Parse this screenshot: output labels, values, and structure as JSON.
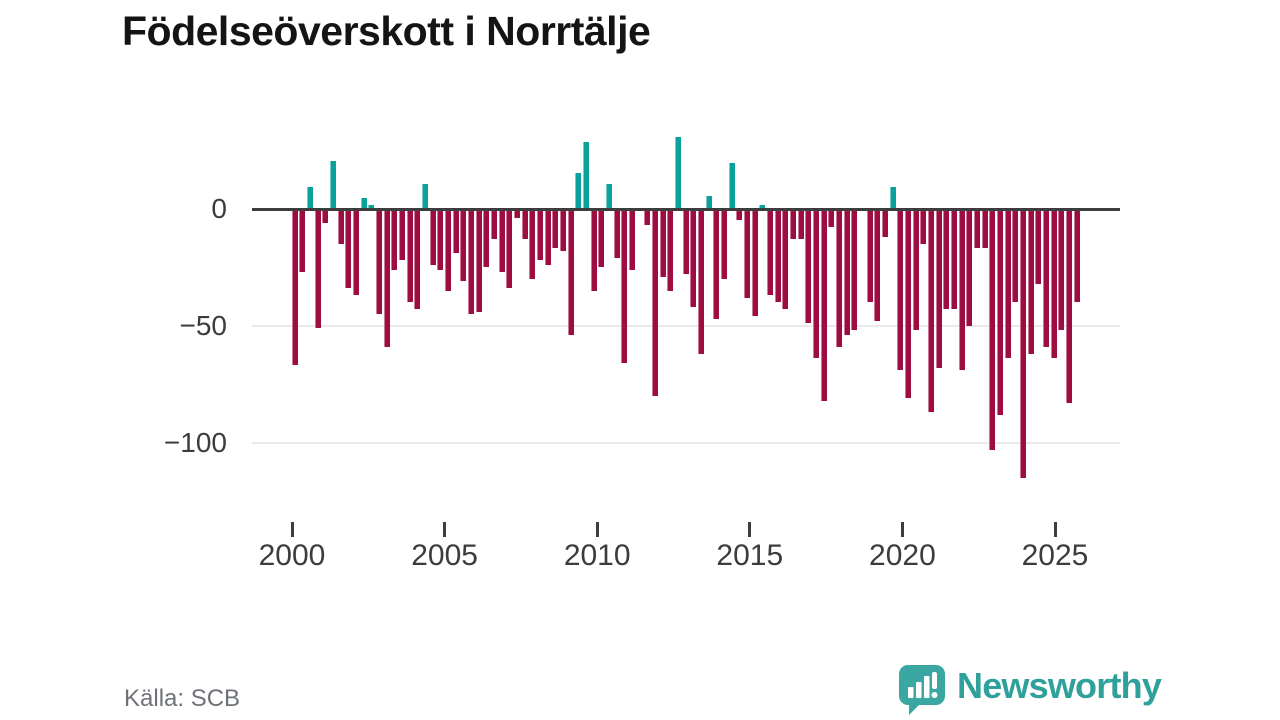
{
  "title": "Födelseöverskott i Norrtälje",
  "source": "Källa: SCB",
  "branding": {
    "name": "Newsworthy"
  },
  "chart_data": {
    "type": "bar",
    "title": "Födelseöverskott i Norrtälje",
    "frequency": "quarterly",
    "start_period": "2000 Q1",
    "end_period": "2025 Q3",
    "x_tick_labels": [
      "2000",
      "2005",
      "2010",
      "2015",
      "2020",
      "2025"
    ],
    "y_ticks": [
      0,
      -50,
      -100
    ],
    "y_tick_labels": [
      "0",
      "−50",
      "−100"
    ],
    "ylim": [
      -120,
      35
    ],
    "grid": true,
    "legend": false,
    "positive_color": "#0aa29a",
    "negative_color": "#9e0d41",
    "zero_line_color": "#3d3d3d",
    "values": [
      -66,
      -26,
      10,
      -50,
      -5,
      21,
      -14,
      -33,
      -36,
      5,
      2,
      -44,
      -58,
      -25,
      -21,
      -39,
      -42,
      11,
      -23,
      -25,
      -34,
      -18,
      -30,
      -44,
      -43,
      -24,
      -12,
      -26,
      -33,
      -3,
      -12,
      -29,
      -21,
      -23,
      -16,
      -17,
      -53,
      16,
      29,
      -34,
      -24,
      11,
      -20,
      -65,
      -25,
      1,
      -6,
      -79,
      -28,
      -34,
      31,
      -27,
      -41,
      -61,
      6,
      -46,
      -29,
      20,
      -4,
      -37,
      -45,
      2,
      -36,
      -39,
      -42,
      -12,
      -12,
      -48,
      -63,
      -81,
      -7,
      -58,
      -53,
      -51,
      1,
      -39,
      -47,
      -11,
      10,
      -68,
      -80,
      -51,
      -14,
      -86,
      -67,
      -42,
      -42,
      -68,
      -49,
      -16,
      -16,
      -102,
      -87,
      -63,
      -39,
      -114,
      -61,
      -31,
      -58,
      -63,
      -51,
      -82,
      -39
    ]
  }
}
